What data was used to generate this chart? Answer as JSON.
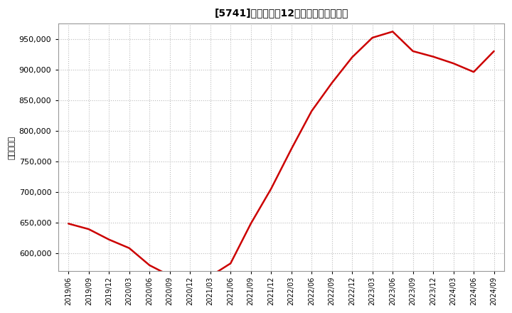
{
  "title": "[5741]　売上高の12か月移動合計の推移",
  "ylabel": "（百万円）",
  "line_color": "#cc0000",
  "bg_color": "#ffffff",
  "plot_bg_color": "#ffffff",
  "grid_color": "#bbbbbb",
  "dates": [
    "2019/06",
    "2019/09",
    "2019/12",
    "2020/03",
    "2020/06",
    "2020/09",
    "2020/12",
    "2021/03",
    "2021/06",
    "2021/09",
    "2021/12",
    "2022/03",
    "2022/06",
    "2022/09",
    "2022/12",
    "2023/03",
    "2023/06",
    "2023/09",
    "2023/12",
    "2024/03",
    "2024/06",
    "2024/09"
  ],
  "values": [
    648000,
    639000,
    622000,
    608000,
    580000,
    563000,
    561000,
    562000,
    583000,
    648000,
    705000,
    770000,
    832000,
    878000,
    920000,
    952000,
    962000,
    930000,
    921000,
    910000,
    896000,
    930000
  ],
  "ylim": [
    570000,
    975000
  ],
  "yticks": [
    600000,
    650000,
    700000,
    750000,
    800000,
    850000,
    900000,
    950000
  ]
}
